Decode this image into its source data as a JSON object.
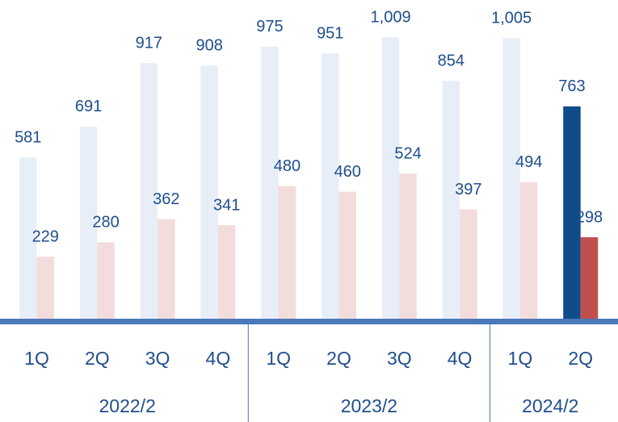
{
  "chart_data": {
    "type": "bar",
    "groups": [
      {
        "label": "2022/2",
        "categories": [
          "1Q",
          "2Q",
          "3Q",
          "4Q"
        ]
      },
      {
        "label": "2023/2",
        "categories": [
          "1Q",
          "2Q",
          "3Q",
          "4Q"
        ]
      },
      {
        "label": "2024/2",
        "categories": [
          "1Q",
          "2Q"
        ]
      }
    ],
    "series": [
      {
        "colors": [
          "#e8eef7",
          "#e8eef7",
          "#e8eef7",
          "#e8eef7",
          "#e8eef7",
          "#e8eef7",
          "#e8eef7",
          "#e8eef7",
          "#e8eef7",
          "#0f4c8a"
        ],
        "values": [
          581,
          691,
          917,
          908,
          975,
          951,
          1009,
          854,
          1005,
          763
        ],
        "value_labels": [
          "581",
          "691",
          "917",
          "908",
          "975",
          "951",
          "1,009",
          "854",
          "1,005",
          "763"
        ]
      },
      {
        "colors": [
          "#f3dcdc",
          "#f3dcdc",
          "#f3dcdc",
          "#f3dcdc",
          "#f3dcdc",
          "#f3dcdc",
          "#f3dcdc",
          "#f3dcdc",
          "#f3dcdc",
          "#c0504d"
        ],
        "values": [
          229,
          280,
          362,
          341,
          480,
          460,
          524,
          397,
          494,
          298
        ]
      }
    ]
  }
}
